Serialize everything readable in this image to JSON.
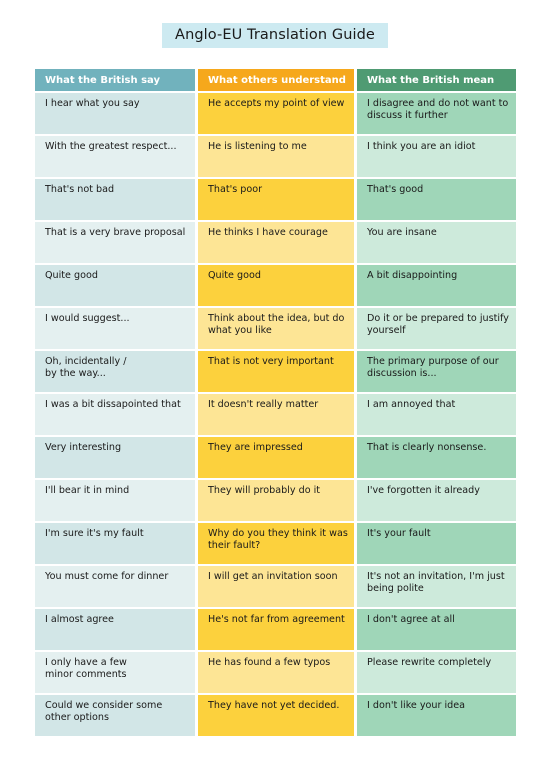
{
  "title": "Anglo-EU Translation Guide",
  "headers": [
    "What the British say",
    "What others understand",
    "What the British mean"
  ],
  "rows": [
    [
      "I hear what you say",
      "He accepts my point of view",
      "I disagree and do not want to discuss it further"
    ],
    [
      "With the greatest respect...",
      "He is listening to me",
      "I think you are an idiot"
    ],
    [
      "That's not bad",
      "That's poor",
      "That's good"
    ],
    [
      "That is a very brave proposal",
      "He thinks I have courage",
      "You are insane"
    ],
    [
      "Quite good",
      "Quite good",
      "A bit disappointing"
    ],
    [
      "I would suggest...",
      "Think about the idea, but do what you like",
      "Do it or be prepared to justify yourself"
    ],
    [
      "Oh, incidentally /\nby the way...",
      "That is not very important",
      "The primary purpose of our discussion is..."
    ],
    [
      "I was a bit dissapointed that",
      "It doesn't really matter",
      "I am annoyed that"
    ],
    [
      "Very interesting",
      "They are impressed",
      "That is clearly nonsense."
    ],
    [
      "I'll bear it in mind",
      "They will probably do it",
      "I've forgotten it already"
    ],
    [
      "I'm sure it's my fault",
      "Why do you they think it was their fault?",
      "It's your fault"
    ],
    [
      "You must come for dinner",
      "I will get an invitation soon",
      "It's not an invitation, I'm just being polite"
    ],
    [
      "I almost agree",
      "He's not far from agreement",
      "I don't agree at all"
    ],
    [
      "I only have a few\nminor comments",
      "He has found a few typos",
      "Please rewrite completely"
    ],
    [
      "Could we consider some other options",
      "They have not yet decided.",
      "I don't like your idea"
    ]
  ]
}
